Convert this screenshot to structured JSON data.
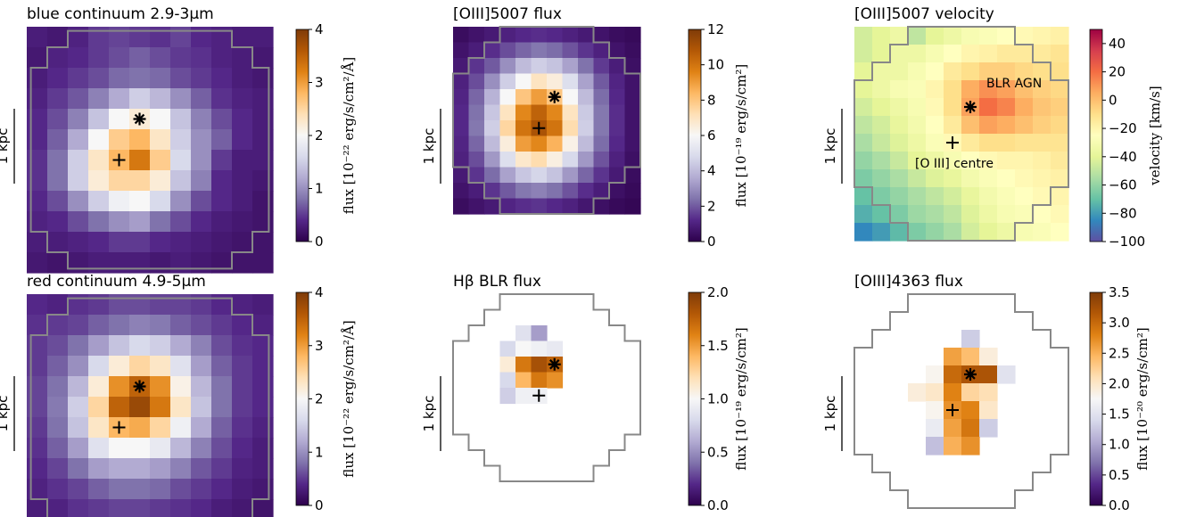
{
  "chart_data": [
    {
      "type": "heatmap",
      "title": "blue continuum 2.9-3μm",
      "colormap": "PuOr_r",
      "scale_bar": "1 kpc",
      "colorbar": {
        "label": "flux [10⁻²² erg/s/cm²/Å]",
        "range": [
          0,
          4
        ],
        "ticks": [
          "0",
          "1",
          "2",
          "3",
          "4"
        ]
      },
      "agn_marker": [
        5,
        4
      ],
      "centre_marker": [
        4,
        6
      ],
      "outline": "square",
      "annotations": [],
      "values": [
        [
          0.3,
          0.25,
          0.35,
          0.5,
          0.55,
          0.5,
          0.45,
          0.55,
          0.4,
          0.35,
          0.3,
          0.3
        ],
        [
          0.25,
          0.35,
          0.4,
          0.5,
          0.6,
          0.7,
          0.6,
          0.5,
          0.45,
          0.35,
          0.3,
          0.25
        ],
        [
          0.3,
          0.4,
          0.5,
          0.6,
          0.75,
          0.8,
          0.75,
          0.6,
          0.5,
          0.4,
          0.3,
          0.25
        ],
        [
          0.35,
          0.5,
          0.65,
          0.9,
          1.2,
          1.5,
          1.3,
          1.0,
          0.7,
          0.45,
          0.35,
          0.3
        ],
        [
          0.4,
          0.6,
          0.9,
          1.4,
          2.0,
          2.2,
          2.0,
          1.4,
          0.9,
          0.6,
          0.4,
          0.3
        ],
        [
          0.4,
          0.7,
          1.2,
          2.0,
          2.6,
          2.8,
          2.3,
          1.5,
          1.0,
          0.7,
          0.4,
          0.3
        ],
        [
          0.45,
          0.8,
          1.5,
          2.3,
          2.8,
          3.3,
          2.6,
          1.6,
          1.0,
          0.5,
          0.3,
          0.3
        ],
        [
          0.45,
          0.8,
          1.5,
          2.2,
          2.5,
          2.5,
          2.2,
          1.4,
          0.9,
          0.4,
          0.3,
          0.25
        ],
        [
          0.4,
          0.6,
          1.0,
          1.5,
          1.9,
          2.0,
          1.6,
          1.0,
          0.6,
          0.4,
          0.3,
          0.2
        ],
        [
          0.35,
          0.4,
          0.6,
          0.8,
          1.0,
          1.1,
          0.8,
          0.6,
          0.4,
          0.3,
          0.25,
          0.2
        ],
        [
          0.3,
          0.3,
          0.35,
          0.4,
          0.5,
          0.5,
          0.4,
          0.35,
          0.3,
          0.25,
          0.2,
          0.2
        ],
        [
          0.25,
          0.2,
          0.25,
          0.3,
          0.3,
          0.3,
          0.25,
          0.3,
          0.25,
          0.2,
          0.2,
          0.2
        ]
      ]
    },
    {
      "type": "heatmap",
      "title": "[OIII]5007 flux",
      "colormap": "PuOr_r",
      "scale_bar": "1 kpc",
      "colorbar": {
        "label": "flux [10⁻¹⁹ erg/s/cm²]",
        "range": [
          0,
          12
        ],
        "ticks": [
          "0",
          "2",
          "4",
          "6",
          "8",
          "10",
          "12"
        ]
      },
      "agn_marker": [
        6,
        4
      ],
      "centre_marker": [
        5,
        6
      ],
      "outline": "octagon",
      "annotations": [],
      "values": [
        [
          0.4,
          0.6,
          0.8,
          1.0,
          1.2,
          1.3,
          1.2,
          1.0,
          0.8,
          0.6,
          0.4,
          0.3
        ],
        [
          0.6,
          0.9,
          1.3,
          1.8,
          2.2,
          2.5,
          2.3,
          1.9,
          1.4,
          1.0,
          0.6,
          0.4
        ],
        [
          0.8,
          1.4,
          2.0,
          3.0,
          4.0,
          4.5,
          4.2,
          3.4,
          2.4,
          1.5,
          0.9,
          0.5
        ],
        [
          1.0,
          1.8,
          3.0,
          4.5,
          6.0,
          7.0,
          6.5,
          5.0,
          3.4,
          2.0,
          1.1,
          0.6
        ],
        [
          1.1,
          2.2,
          3.8,
          6.0,
          8.0,
          9.0,
          8.0,
          6.0,
          4.0,
          2.3,
          1.2,
          0.6
        ],
        [
          1.2,
          2.4,
          4.3,
          7.0,
          9.5,
          10.5,
          9.5,
          7.0,
          4.4,
          2.5,
          1.3,
          0.6
        ],
        [
          1.2,
          2.5,
          4.5,
          7.5,
          10.0,
          11.0,
          10.0,
          7.3,
          4.5,
          2.5,
          1.3,
          0.6
        ],
        [
          1.1,
          2.2,
          4.0,
          6.5,
          9.0,
          9.5,
          8.5,
          6.3,
          4.0,
          2.3,
          1.2,
          0.6
        ],
        [
          1.0,
          1.8,
          3.2,
          5.0,
          6.8,
          7.3,
          6.4,
          4.8,
          3.2,
          1.9,
          1.0,
          0.5
        ],
        [
          0.8,
          1.4,
          2.3,
          3.4,
          4.3,
          4.7,
          4.2,
          3.2,
          2.2,
          1.4,
          0.8,
          0.4
        ],
        [
          0.6,
          0.9,
          1.4,
          2.0,
          2.5,
          2.7,
          2.4,
          1.9,
          1.3,
          0.9,
          0.5,
          0.3
        ],
        [
          0.4,
          0.6,
          0.8,
          1.1,
          1.3,
          1.4,
          1.2,
          1.0,
          0.7,
          0.5,
          0.3,
          0.2
        ]
      ]
    },
    {
      "type": "heatmap",
      "title": "[OIII]5007 velocity",
      "colormap": "Spectral_r",
      "scale_bar": "1 kpc",
      "colorbar": {
        "label": "velocity [km/s]",
        "range": [
          -100,
          50
        ],
        "ticks": [
          "40",
          "20",
          "0",
          "−20",
          "−40",
          "−60",
          "−80",
          "−100"
        ],
        "tick_values": [
          40,
          20,
          0,
          -20,
          -40,
          -60,
          -80,
          -100
        ]
      },
      "agn_marker": [
        6,
        4
      ],
      "centre_marker": [
        5,
        6
      ],
      "outline": "octagon",
      "annotations": [
        "BLR AGN",
        "[O III] centre"
      ],
      "values": [
        [
          -45,
          -40,
          -35,
          -50,
          -40,
          -35,
          -30,
          -28,
          -25,
          -22,
          -20,
          -18
        ],
        [
          -45,
          -40,
          -35,
          -35,
          -30,
          -25,
          -20,
          -18,
          -15,
          -15,
          -15,
          -12
        ],
        [
          -40,
          -35,
          -35,
          -30,
          -25,
          -15,
          -10,
          -5,
          -5,
          -8,
          -10,
          -10
        ],
        [
          -40,
          -35,
          -30,
          -28,
          -20,
          -10,
          5,
          12,
          8,
          0,
          -5,
          -8
        ],
        [
          -45,
          -40,
          -35,
          -30,
          -22,
          -10,
          8,
          20,
          15,
          5,
          -2,
          -5
        ],
        [
          -50,
          -45,
          -38,
          -32,
          -25,
          -15,
          0,
          8,
          5,
          0,
          -5,
          -8
        ],
        [
          -55,
          -48,
          -42,
          -35,
          -28,
          -22,
          -15,
          -10,
          -10,
          -12,
          -12,
          -12
        ],
        [
          -60,
          -55,
          -48,
          -40,
          -35,
          -30,
          -25,
          -22,
          -20,
          -20,
          -18,
          -15
        ],
        [
          -65,
          -60,
          -55,
          -48,
          -42,
          -38,
          -32,
          -28,
          -25,
          -22,
          -20,
          -18
        ],
        [
          -70,
          -65,
          -60,
          -55,
          -50,
          -45,
          -38,
          -32,
          -28,
          -25,
          -22,
          -20
        ],
        [
          -75,
          -70,
          -65,
          -58,
          -55,
          -50,
          -42,
          -35,
          -30,
          -28,
          -25,
          -22
        ],
        [
          -85,
          -80,
          -72,
          -65,
          -60,
          -55,
          -45,
          -40,
          -35,
          -30,
          -28,
          -25
        ]
      ]
    },
    {
      "type": "heatmap",
      "title": "red continuum 4.9-5μm",
      "colormap": "PuOr_r",
      "scale_bar": "1 kpc",
      "colorbar": {
        "label": "flux [10⁻²² erg/s/cm²/Å]",
        "range": [
          0,
          4
        ],
        "ticks": [
          "0",
          "1",
          "2",
          "3",
          "4"
        ]
      },
      "agn_marker": [
        5,
        4
      ],
      "centre_marker": [
        4,
        6
      ],
      "outline": "square",
      "annotations": [],
      "values": [
        [
          0.4,
          0.35,
          0.45,
          0.5,
          0.6,
          0.6,
          0.55,
          0.55,
          0.5,
          0.4,
          0.35,
          0.3
        ],
        [
          0.45,
          0.5,
          0.55,
          0.7,
          0.8,
          0.9,
          0.85,
          0.7,
          0.6,
          0.5,
          0.4,
          0.35
        ],
        [
          0.5,
          0.6,
          0.8,
          1.1,
          1.4,
          1.6,
          1.5,
          1.2,
          0.9,
          0.6,
          0.45,
          0.4
        ],
        [
          0.5,
          0.7,
          1.0,
          1.6,
          2.2,
          2.5,
          2.3,
          1.7,
          1.1,
          0.7,
          0.5,
          0.4
        ],
        [
          0.55,
          0.8,
          1.3,
          2.2,
          3.1,
          3.5,
          3.1,
          2.1,
          1.3,
          0.8,
          0.5,
          0.4
        ],
        [
          0.55,
          0.85,
          1.5,
          2.5,
          3.5,
          3.8,
          3.3,
          2.3,
          1.4,
          0.8,
          0.5,
          0.4
        ],
        [
          0.5,
          0.8,
          1.4,
          2.3,
          2.8,
          2.9,
          2.5,
          1.9,
          1.2,
          0.7,
          0.45,
          0.35
        ],
        [
          0.45,
          0.7,
          1.1,
          1.7,
          2.0,
          2.0,
          1.8,
          1.3,
          0.9,
          0.6,
          0.4,
          0.3
        ],
        [
          0.4,
          0.55,
          0.8,
          1.1,
          1.2,
          1.2,
          1.1,
          0.9,
          0.65,
          0.5,
          0.35,
          0.3
        ],
        [
          0.35,
          0.45,
          0.55,
          0.7,
          0.8,
          0.8,
          0.75,
          0.6,
          0.5,
          0.4,
          0.3,
          0.25
        ],
        [
          0.3,
          0.35,
          0.45,
          0.5,
          0.55,
          0.55,
          0.5,
          0.45,
          0.4,
          0.3,
          0.25,
          0.2
        ],
        [
          0.25,
          0.3,
          0.35,
          0.4,
          0.45,
          0.45,
          0.4,
          0.35,
          0.3,
          0.25,
          0.2,
          0.2
        ]
      ]
    },
    {
      "type": "heatmap",
      "title": "Hβ BLR flux",
      "colormap": "PuOr_r",
      "scale_bar": "1 kpc",
      "colorbar": {
        "label": "flux [10⁻¹⁹ erg/s/cm²]",
        "range": [
          0,
          2
        ],
        "ticks": [
          "0.0",
          "0.5",
          "1.0",
          "1.5",
          "2.0"
        ]
      },
      "agn_marker": [
        6,
        4
      ],
      "centre_marker": [
        5,
        6
      ],
      "outline": "octagon",
      "annotations": [],
      "values": [
        [
          null,
          null,
          null,
          null,
          null,
          null,
          null,
          null,
          null,
          null,
          null,
          null
        ],
        [
          null,
          null,
          null,
          null,
          null,
          null,
          null,
          null,
          null,
          null,
          null,
          null
        ],
        [
          null,
          null,
          null,
          null,
          0.85,
          0.55,
          null,
          null,
          null,
          null,
          null,
          null
        ],
        [
          null,
          null,
          null,
          0.8,
          1.0,
          0.95,
          0.9,
          null,
          null,
          null,
          null,
          null
        ],
        [
          null,
          null,
          null,
          1.1,
          1.65,
          1.85,
          1.75,
          null,
          null,
          null,
          null,
          null
        ],
        [
          null,
          null,
          null,
          0.8,
          1.4,
          1.65,
          1.55,
          null,
          null,
          null,
          null,
          null
        ],
        [
          null,
          null,
          null,
          0.75,
          0.95,
          0.95,
          null,
          null,
          null,
          null,
          null,
          null
        ],
        [
          null,
          null,
          null,
          null,
          null,
          null,
          null,
          null,
          null,
          null,
          null,
          null
        ],
        [
          null,
          null,
          null,
          null,
          null,
          null,
          null,
          null,
          null,
          null,
          null,
          null
        ],
        [
          null,
          null,
          null,
          null,
          null,
          null,
          null,
          null,
          null,
          null,
          null,
          null
        ],
        [
          null,
          null,
          null,
          null,
          null,
          null,
          null,
          null,
          null,
          null,
          null,
          null
        ],
        [
          null,
          null,
          null,
          null,
          null,
          null,
          null,
          null,
          null,
          null,
          null,
          null
        ]
      ]
    },
    {
      "type": "heatmap",
      "title": "[OIII]4363 flux",
      "colormap": "PuOr_r",
      "scale_bar": "1 kpc",
      "colorbar": {
        "label": "flux [10⁻²⁰ erg/s/cm²]",
        "range": [
          0,
          3.5
        ],
        "ticks": [
          "0.0",
          "0.5",
          "1.0",
          "1.5",
          "2.0",
          "2.5",
          "3.0",
          "3.5"
        ]
      },
      "agn_marker": [
        6,
        4
      ],
      "centre_marker": [
        5,
        6
      ],
      "outline": "octagon",
      "annotations": [],
      "values": [
        [
          null,
          null,
          null,
          null,
          null,
          null,
          null,
          null,
          null,
          null,
          null,
          null
        ],
        [
          null,
          null,
          null,
          null,
          null,
          null,
          null,
          null,
          null,
          null,
          null,
          null
        ],
        [
          null,
          null,
          null,
          null,
          null,
          null,
          1.3,
          null,
          null,
          null,
          null,
          null
        ],
        [
          null,
          null,
          null,
          null,
          null,
          2.6,
          2.4,
          1.9,
          null,
          null,
          null,
          null
        ],
        [
          null,
          null,
          null,
          null,
          1.8,
          3.0,
          3.2,
          3.2,
          1.5,
          null,
          null,
          null
        ],
        [
          null,
          null,
          null,
          1.9,
          2.0,
          2.8,
          2.2,
          2.1,
          null,
          null,
          null,
          null
        ],
        [
          null,
          null,
          null,
          null,
          1.8,
          2.7,
          2.8,
          2.0,
          null,
          null,
          null,
          null
        ],
        [
          null,
          null,
          null,
          null,
          1.6,
          2.6,
          2.9,
          1.3,
          null,
          null,
          null,
          null
        ],
        [
          null,
          null,
          null,
          null,
          1.2,
          2.5,
          2.7,
          null,
          null,
          null,
          null,
          null
        ],
        [
          null,
          null,
          null,
          null,
          null,
          null,
          null,
          null,
          null,
          null,
          null,
          null
        ],
        [
          null,
          null,
          null,
          null,
          null,
          null,
          null,
          null,
          null,
          null,
          null,
          null
        ],
        [
          null,
          null,
          null,
          null,
          null,
          null,
          null,
          null,
          null,
          null,
          null,
          null
        ]
      ]
    }
  ]
}
